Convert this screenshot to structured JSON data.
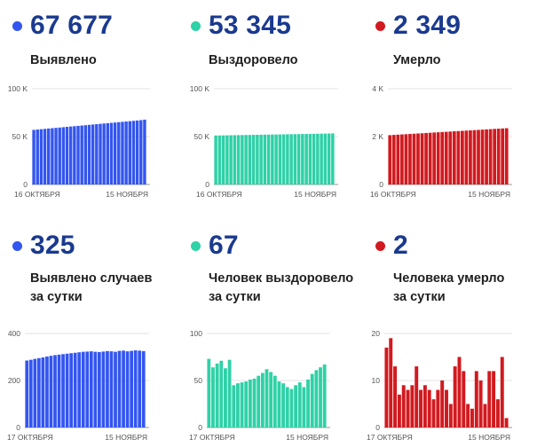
{
  "panels": [
    {
      "value": "67 677",
      "label_lines": [
        "Выявлено"
      ],
      "color": "#3355f0",
      "chart_data": {
        "type": "bar",
        "ylim": [
          0,
          100000
        ],
        "yticks": [
          {
            "v": 0,
            "label": "0"
          },
          {
            "v": 50000,
            "label": "50 K"
          },
          {
            "v": 100000,
            "label": "100 K"
          }
        ],
        "xlabels": [
          "16 ОКТЯБРЯ",
          "15 НОЯБРЯ"
        ],
        "values": [
          57000,
          57350,
          57700,
          58050,
          58400,
          58750,
          59100,
          59450,
          59800,
          60150,
          60500,
          60850,
          61200,
          61550,
          61900,
          62250,
          62600,
          62950,
          63300,
          63650,
          64000,
          64350,
          64700,
          65050,
          65400,
          65750,
          66100,
          66450,
          66800,
          67150,
          67677
        ]
      }
    },
    {
      "value": "53 345",
      "label_lines": [
        "Выздоровело"
      ],
      "color": "#2fd1a7",
      "chart_data": {
        "type": "bar",
        "ylim": [
          0,
          100000
        ],
        "yticks": [
          {
            "v": 0,
            "label": "0"
          },
          {
            "v": 50000,
            "label": "50 K"
          },
          {
            "v": 100000,
            "label": "100 K"
          }
        ],
        "xlabels": [
          "16 ОКТЯБРЯ",
          "15 НОЯБРЯ"
        ],
        "values": [
          51100,
          51170,
          51240,
          51310,
          51380,
          51450,
          51520,
          51590,
          51660,
          51730,
          51800,
          51870,
          51940,
          52010,
          52080,
          52150,
          52220,
          52290,
          52360,
          52430,
          52500,
          52570,
          52640,
          52710,
          52780,
          52850,
          52920,
          52990,
          53060,
          53130,
          53200,
          53345
        ]
      }
    },
    {
      "value": "2 349",
      "label_lines": [
        "Умерло"
      ],
      "color": "#d11a1f",
      "chart_data": {
        "type": "bar",
        "ylim": [
          0,
          4000
        ],
        "yticks": [
          {
            "v": 0,
            "label": "0"
          },
          {
            "v": 2000,
            "label": "2 K"
          },
          {
            "v": 4000,
            "label": "4 K"
          }
        ],
        "xlabels": [
          "16 ОКТЯБРЯ",
          "15 НОЯБРЯ"
        ],
        "values": [
          2060,
          2070,
          2080,
          2090,
          2100,
          2110,
          2120,
          2130,
          2140,
          2150,
          2160,
          2170,
          2180,
          2190,
          2200,
          2210,
          2220,
          2230,
          2240,
          2250,
          2260,
          2270,
          2280,
          2290,
          2300,
          2310,
          2320,
          2330,
          2340,
          2349
        ]
      }
    },
    {
      "value": "325",
      "label_lines": [
        "Выявлено случаев",
        "за сутки"
      ],
      "color": "#3355f0",
      "chart_data": {
        "type": "bar",
        "ylim": [
          0,
          400
        ],
        "yticks": [
          {
            "v": 0,
            "label": "0"
          },
          {
            "v": 200,
            "label": "200"
          },
          {
            "v": 400,
            "label": "400"
          }
        ],
        "xlabels": [
          "17 ОКТЯБРЯ",
          "15 НОЯБРЯ"
        ],
        "values": [
          285,
          288,
          292,
          295,
          298,
          302,
          305,
          308,
          310,
          312,
          314,
          316,
          318,
          320,
          322,
          323,
          324,
          322,
          321,
          323,
          325,
          324,
          322,
          326,
          327,
          324,
          326,
          328,
          327,
          325
        ]
      }
    },
    {
      "value": "67",
      "label_lines": [
        "Человек выздоровело",
        "за сутки"
      ],
      "color": "#2fd1a7",
      "chart_data": {
        "type": "bar",
        "ylim": [
          0,
          100
        ],
        "yticks": [
          {
            "v": 0,
            "label": "0"
          },
          {
            "v": 50,
            "label": "50"
          },
          {
            "v": 100,
            "label": "100"
          }
        ],
        "xlabels": [
          "17 ОКТЯБРЯ",
          "15 НОЯБРЯ"
        ],
        "values": [
          73,
          64,
          68,
          71,
          63,
          72,
          45,
          47,
          48,
          49,
          51,
          52,
          55,
          58,
          62,
          59,
          55,
          49,
          47,
          43,
          41,
          45,
          48,
          43,
          51,
          57,
          61,
          64,
          67
        ]
      }
    },
    {
      "value": "2",
      "label_lines": [
        "Человека умерло",
        "за сутки"
      ],
      "color": "#d11a1f",
      "chart_data": {
        "type": "bar",
        "ylim": [
          0,
          20
        ],
        "yticks": [
          {
            "v": 0,
            "label": "0"
          },
          {
            "v": 10,
            "label": "10"
          },
          {
            "v": 20,
            "label": "20"
          }
        ],
        "xlabels": [
          "17 ОКТЯБРЯ",
          "15 НОЯБРЯ"
        ],
        "values": [
          17,
          19,
          13,
          7,
          9,
          8,
          9,
          13,
          8,
          9,
          8,
          6,
          8,
          10,
          8,
          5,
          13,
          15,
          12,
          5,
          4,
          12,
          10,
          5,
          12,
          12,
          6,
          15,
          2
        ]
      }
    }
  ]
}
